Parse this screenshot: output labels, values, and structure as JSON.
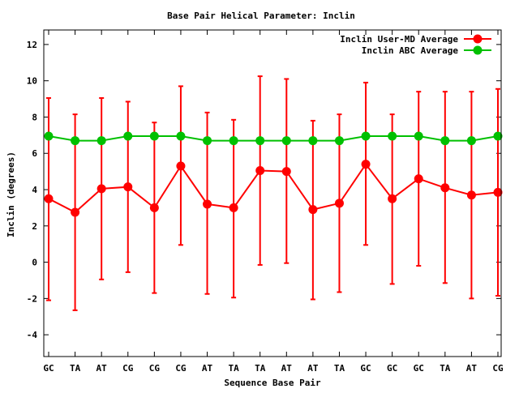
{
  "chart_data": {
    "type": "line",
    "title": "Base Pair Helical Parameter: Inclin",
    "xlabel": "Sequence Base Pair",
    "ylabel": "Inclin (degrees)",
    "categories": [
      "GC",
      "TA",
      "AT",
      "CG",
      "CG",
      "CG",
      "AT",
      "TA",
      "TA",
      "AT",
      "AT",
      "TA",
      "GC",
      "GC",
      "GC",
      "TA",
      "AT",
      "CG"
    ],
    "ylim": [
      -5.2,
      12.8
    ],
    "yticks": [
      -4,
      -2,
      0,
      2,
      4,
      6,
      8,
      10,
      12
    ],
    "grid": false,
    "legend_position": "top-right",
    "series": [
      {
        "name": "Inclin User-MD Average",
        "color": "#ff0000",
        "values": [
          3.5,
          2.75,
          4.05,
          4.15,
          3.0,
          5.3,
          3.2,
          3.0,
          5.05,
          5.0,
          2.9,
          3.25,
          5.4,
          3.5,
          4.6,
          4.1,
          3.7,
          3.85
        ],
        "error_low": [
          -2.1,
          -2.65,
          -0.95,
          -0.55,
          -1.7,
          0.95,
          -1.75,
          -1.95,
          -0.15,
          -0.05,
          -2.05,
          -1.65,
          0.95,
          -1.2,
          -0.2,
          -1.15,
          -2.0,
          -1.85
        ],
        "error_high": [
          9.05,
          8.15,
          9.05,
          8.85,
          7.7,
          9.7,
          8.25,
          7.85,
          10.25,
          10.1,
          7.8,
          8.15,
          9.9,
          8.15,
          9.4,
          9.4,
          9.4,
          9.55
        ]
      },
      {
        "name": "Inclin ABC Average",
        "color": "#00c000",
        "values": [
          6.95,
          6.7,
          6.7,
          6.95,
          6.95,
          6.95,
          6.7,
          6.7,
          6.7,
          6.7,
          6.7,
          6.7,
          6.95,
          6.95,
          6.95,
          6.7,
          6.7,
          6.95
        ]
      }
    ]
  }
}
